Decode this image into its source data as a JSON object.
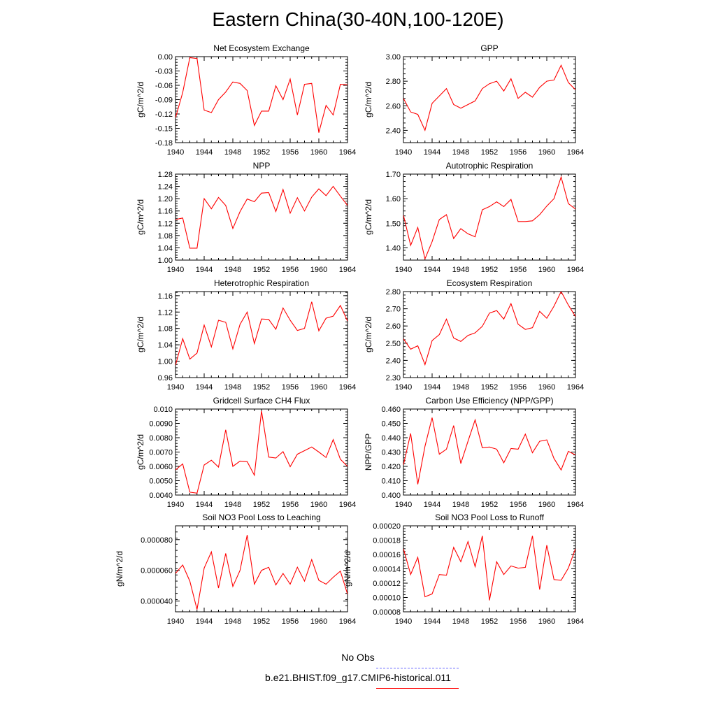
{
  "figure": {
    "title": "Eastern China(30-40N,100-120E)",
    "legend": {
      "obs_label": "No Obs",
      "obs_color": "#6a6aff",
      "model_label": "b.e21.BHIST.f09_g17.CMIP6-historical.011",
      "model_color": "#ff0000"
    }
  },
  "chart_data": [
    {
      "type": "line",
      "title": "Net Ecosystem Exchange",
      "ylabel": "gC/m^2/d",
      "xlabel": "",
      "xlim": [
        1940,
        1964
      ],
      "ylim": [
        -0.18,
        0.0
      ],
      "xticks": [
        1940,
        1944,
        1948,
        1952,
        1956,
        1960,
        1964
      ],
      "yticks": [
        "-0.18",
        "-0.15",
        "-0.12",
        "-0.09",
        "-0.06",
        "-0.03",
        "0.00"
      ],
      "series": [
        {
          "x": [
            1940,
            1941,
            1942,
            1943,
            1944,
            1945,
            1946,
            1947,
            1948,
            1949,
            1950,
            1951,
            1952,
            1953,
            1954,
            1955,
            1956,
            1957,
            1958,
            1959,
            1960,
            1961,
            1962,
            1963,
            1964
          ],
          "values": [
            -0.128,
            -0.075,
            -0.002,
            -0.004,
            -0.112,
            -0.117,
            -0.09,
            -0.074,
            -0.053,
            -0.056,
            -0.071,
            -0.144,
            -0.114,
            -0.114,
            -0.061,
            -0.09,
            -0.047,
            -0.122,
            -0.058,
            -0.056,
            -0.159,
            -0.102,
            -0.122,
            -0.058,
            -0.059
          ]
        }
      ]
    },
    {
      "type": "line",
      "title": "GPP",
      "ylabel": "gC/m^2/d",
      "xlabel": "",
      "xlim": [
        1940,
        1964
      ],
      "ylim": [
        2.3,
        3.0
      ],
      "xticks": [
        1940,
        1944,
        1948,
        1952,
        1956,
        1960,
        1964
      ],
      "yticks": [
        "2.40",
        "2.60",
        "2.80",
        "3.00"
      ],
      "series": [
        {
          "x": [
            1940,
            1941,
            1942,
            1943,
            1944,
            1945,
            1946,
            1947,
            1948,
            1949,
            1950,
            1951,
            1952,
            1953,
            1954,
            1955,
            1956,
            1957,
            1958,
            1959,
            1960,
            1961,
            1962,
            1963,
            1964
          ],
          "values": [
            2.66,
            2.55,
            2.53,
            2.4,
            2.62,
            2.68,
            2.74,
            2.61,
            2.58,
            2.61,
            2.64,
            2.74,
            2.78,
            2.8,
            2.72,
            2.82,
            2.66,
            2.71,
            2.67,
            2.75,
            2.8,
            2.81,
            2.93,
            2.79,
            2.73
          ]
        }
      ]
    },
    {
      "type": "line",
      "title": "NPP",
      "ylabel": "gC/m^2/d",
      "xlabel": "",
      "xlim": [
        1940,
        1964
      ],
      "ylim": [
        1.0,
        1.28
      ],
      "xticks": [
        1940,
        1944,
        1948,
        1952,
        1956,
        1960,
        1964
      ],
      "yticks": [
        "1.00",
        "1.04",
        "1.08",
        "1.12",
        "1.16",
        "1.20",
        "1.24",
        "1.28"
      ],
      "series": [
        {
          "x": [
            1940,
            1941,
            1942,
            1943,
            1944,
            1945,
            1946,
            1947,
            1948,
            1949,
            1950,
            1951,
            1952,
            1953,
            1954,
            1955,
            1956,
            1957,
            1958,
            1959,
            1960,
            1961,
            1962,
            1963,
            1964
          ],
          "values": [
            1.132,
            1.137,
            1.039,
            1.039,
            1.2,
            1.167,
            1.204,
            1.178,
            1.103,
            1.158,
            1.199,
            1.19,
            1.218,
            1.22,
            1.158,
            1.23,
            1.153,
            1.203,
            1.16,
            1.205,
            1.232,
            1.21,
            1.24,
            1.208,
            1.178
          ]
        }
      ]
    },
    {
      "type": "line",
      "title": "Autotrophic Respiration",
      "ylabel": "gC/m^2/d",
      "xlabel": "",
      "xlim": [
        1940,
        1964
      ],
      "ylim": [
        1.35,
        1.7
      ],
      "xticks": [
        1940,
        1944,
        1948,
        1952,
        1956,
        1960,
        1964
      ],
      "yticks": [
        "1.40",
        "1.50",
        "1.60",
        "1.70"
      ],
      "series": [
        {
          "x": [
            1940,
            1941,
            1942,
            1943,
            1944,
            1945,
            1946,
            1947,
            1948,
            1949,
            1950,
            1951,
            1952,
            1953,
            1954,
            1955,
            1956,
            1957,
            1958,
            1959,
            1960,
            1961,
            1962,
            1963,
            1964
          ],
          "values": [
            1.533,
            1.41,
            1.483,
            1.355,
            1.425,
            1.515,
            1.535,
            1.438,
            1.478,
            1.457,
            1.445,
            1.555,
            1.568,
            1.587,
            1.568,
            1.597,
            1.507,
            1.507,
            1.51,
            1.535,
            1.57,
            1.6,
            1.688,
            1.58,
            1.558
          ]
        }
      ]
    },
    {
      "type": "line",
      "title": "Heterotrophic Respiration",
      "ylabel": "gC/m^2/d",
      "xlabel": "",
      "xlim": [
        1940,
        1964
      ],
      "ylim": [
        0.96,
        1.17
      ],
      "xticks": [
        1940,
        1944,
        1948,
        1952,
        1956,
        1960,
        1964
      ],
      "yticks": [
        "0.96",
        "1.00",
        "1.04",
        "1.08",
        "1.12",
        "1.16"
      ],
      "series": [
        {
          "x": [
            1940,
            1941,
            1942,
            1943,
            1944,
            1945,
            1946,
            1947,
            1948,
            1949,
            1950,
            1951,
            1952,
            1953,
            1954,
            1955,
            1956,
            1957,
            1958,
            1959,
            1960,
            1961,
            1962,
            1963,
            1964
          ],
          "values": [
            0.99,
            1.055,
            1.005,
            1.02,
            1.088,
            1.035,
            1.1,
            1.095,
            1.03,
            1.09,
            1.12,
            1.043,
            1.103,
            1.102,
            1.078,
            1.13,
            1.1,
            1.075,
            1.08,
            1.145,
            1.074,
            1.105,
            1.11,
            1.136,
            1.098
          ]
        }
      ]
    },
    {
      "type": "line",
      "title": "Ecosystem Respiration",
      "ylabel": "gC/m^2/d",
      "xlabel": "",
      "xlim": [
        1940,
        1964
      ],
      "ylim": [
        2.3,
        2.8
      ],
      "xticks": [
        1940,
        1944,
        1948,
        1952,
        1956,
        1960,
        1964
      ],
      "yticks": [
        "2.30",
        "2.40",
        "2.50",
        "2.60",
        "2.70",
        "2.80"
      ],
      "series": [
        {
          "x": [
            1940,
            1941,
            1942,
            1943,
            1944,
            1945,
            1946,
            1947,
            1948,
            1949,
            1950,
            1951,
            1952,
            1953,
            1954,
            1955,
            1956,
            1957,
            1958,
            1959,
            1960,
            1961,
            1962,
            1963,
            1964
          ],
          "values": [
            2.525,
            2.465,
            2.485,
            2.375,
            2.515,
            2.55,
            2.64,
            2.53,
            2.51,
            2.545,
            2.56,
            2.598,
            2.675,
            2.69,
            2.64,
            2.73,
            2.61,
            2.58,
            2.59,
            2.685,
            2.645,
            2.715,
            2.8,
            2.722,
            2.655
          ]
        }
      ]
    },
    {
      "type": "line",
      "title": "Gridcell Surface CH4 Flux",
      "ylabel": "gC/m^2/d",
      "xlabel": "",
      "xlim": [
        1940,
        1964
      ],
      "ylim": [
        0.004,
        0.01
      ],
      "xticks": [
        1940,
        1944,
        1948,
        1952,
        1956,
        1960,
        1964
      ],
      "yticks": [
        "0.0040",
        "0.0050",
        "0.0060",
        "0.0070",
        "0.0080",
        "0.0090",
        "0.010"
      ],
      "series": [
        {
          "x": [
            1940,
            1941,
            1942,
            1943,
            1944,
            1945,
            1946,
            1947,
            1948,
            1949,
            1950,
            1951,
            1952,
            1953,
            1954,
            1955,
            1956,
            1957,
            1958,
            1959,
            1960,
            1961,
            1962,
            1963,
            1964
          ],
          "values": [
            0.00575,
            0.00617,
            0.0042,
            0.00413,
            0.0061,
            0.00643,
            0.00595,
            0.00855,
            0.006,
            0.00637,
            0.00633,
            0.00538,
            0.00987,
            0.00665,
            0.00658,
            0.00703,
            0.00598,
            0.00685,
            0.0071,
            0.00735,
            0.007,
            0.00662,
            0.00787,
            0.0065,
            0.006
          ]
        }
      ]
    },
    {
      "type": "line",
      "title": "Carbon Use Efficiency (NPP/GPP)",
      "ylabel": "NPP/GPP",
      "xlabel": "",
      "xlim": [
        1940,
        1964
      ],
      "ylim": [
        0.4,
        0.46
      ],
      "xticks": [
        1940,
        1944,
        1948,
        1952,
        1956,
        1960,
        1964
      ],
      "yticks": [
        "0.400",
        "0.410",
        "0.420",
        "0.430",
        "0.440",
        "0.450",
        "0.460"
      ],
      "series": [
        {
          "x": [
            1940,
            1941,
            1942,
            1943,
            1944,
            1945,
            1946,
            1947,
            1948,
            1949,
            1950,
            1951,
            1952,
            1953,
            1954,
            1955,
            1956,
            1957,
            1958,
            1959,
            1960,
            1961,
            1962,
            1963,
            1964
          ],
          "values": [
            0.421,
            0.443,
            0.4075,
            0.434,
            0.454,
            0.4285,
            0.432,
            0.4485,
            0.422,
            0.4375,
            0.4525,
            0.433,
            0.4335,
            0.432,
            0.4225,
            0.4325,
            0.432,
            0.4425,
            0.4295,
            0.4375,
            0.4385,
            0.4255,
            0.4175,
            0.4305,
            0.428
          ]
        }
      ]
    },
    {
      "type": "line",
      "title": "Soil NO3 Pool Loss to Leaching",
      "ylabel": "gN/m^2/d",
      "xlabel": "",
      "xlim": [
        1940,
        1964
      ],
      "ylim": [
        3.3e-05,
        8.9e-05
      ],
      "xticks": [
        1940,
        1944,
        1948,
        1952,
        1956,
        1960,
        1964
      ],
      "ytick_values": [
        4e-05,
        6e-05,
        8e-05
      ],
      "yticks": [
        "0.000040",
        "0.000060",
        "0.000080"
      ],
      "series": [
        {
          "x": [
            1940,
            1941,
            1942,
            1943,
            1944,
            1945,
            1946,
            1947,
            1948,
            1949,
            1950,
            1951,
            1952,
            1953,
            1954,
            1955,
            1956,
            1957,
            1958,
            1959,
            1960,
            1961,
            1962,
            1963,
            1964
          ],
          "values": [
            5.8e-05,
            6.35e-05,
            5.3e-05,
            3.45e-05,
            6.15e-05,
            7.2e-05,
            4.85e-05,
            7.1e-05,
            4.95e-05,
            6e-05,
            8.3e-05,
            5.1e-05,
            6e-05,
            6.2e-05,
            5.05e-05,
            5.8e-05,
            5.1e-05,
            6.2e-05,
            5.3e-05,
            6.7e-05,
            5.35e-05,
            5.1e-05,
            5.55e-05,
            5.95e-05,
            4.45e-05
          ]
        }
      ]
    },
    {
      "type": "line",
      "title": "Soil NO3 Pool Loss to Runoff",
      "ylabel": "gN/m^2/d",
      "xlabel": "",
      "xlim": [
        1940,
        1964
      ],
      "ylim": [
        8e-05,
        0.0002
      ],
      "xticks": [
        1940,
        1944,
        1948,
        1952,
        1956,
        1960,
        1964
      ],
      "yticks": [
        "0.00008",
        "0.00010",
        "0.00012",
        "0.00014",
        "0.00016",
        "0.00018",
        "0.00020"
      ],
      "series": [
        {
          "x": [
            1940,
            1941,
            1942,
            1943,
            1944,
            1945,
            1946,
            1947,
            1948,
            1949,
            1950,
            1951,
            1952,
            1953,
            1954,
            1955,
            1956,
            1957,
            1958,
            1959,
            1960,
            1961,
            1962,
            1963,
            1964
          ],
          "values": [
            0.000168,
            0.000132,
            0.000156,
            0.000101,
            0.000105,
            0.000132,
            0.000131,
            0.00017,
            0.00015,
            0.000178,
            0.000143,
            0.000186,
            9.6e-05,
            0.00015,
            0.000132,
            0.000144,
            0.000141,
            0.000142,
            0.000186,
            0.000111,
            0.000173,
            0.000125,
            0.000124,
            0.000141,
            0.000168
          ]
        }
      ]
    }
  ]
}
